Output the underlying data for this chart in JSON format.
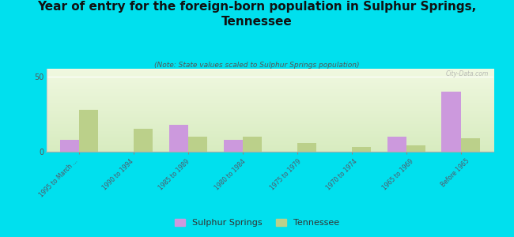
{
  "title": "Year of entry for the foreign-born population in Sulphur Springs,\nTennessee",
  "subtitle": "(Note: State values scaled to Sulphur Springs population)",
  "categories": [
    "1995 to March ...",
    "1990 to 1994",
    "1985 to 1989",
    "1980 to 1984",
    "1975 to 1979",
    "1970 to 1974",
    "1965 to 1969",
    "Before 1965"
  ],
  "sulphur_springs": [
    8,
    0,
    18,
    8,
    0,
    0,
    10,
    40
  ],
  "tennessee": [
    28,
    15,
    10,
    10,
    6,
    3,
    4,
    9
  ],
  "ylim": [
    0,
    55
  ],
  "yticks": [
    0,
    50
  ],
  "bar_color_sulphur": "#cc99dd",
  "bar_color_tennessee": "#bbd08a",
  "background_color": "#00e0ee",
  "watermark": "City-Data.com",
  "legend_sulphur": "Sulphur Springs",
  "legend_tennessee": "Tennessee",
  "title_fontsize": 11,
  "subtitle_fontsize": 6.5,
  "bar_width": 0.35
}
